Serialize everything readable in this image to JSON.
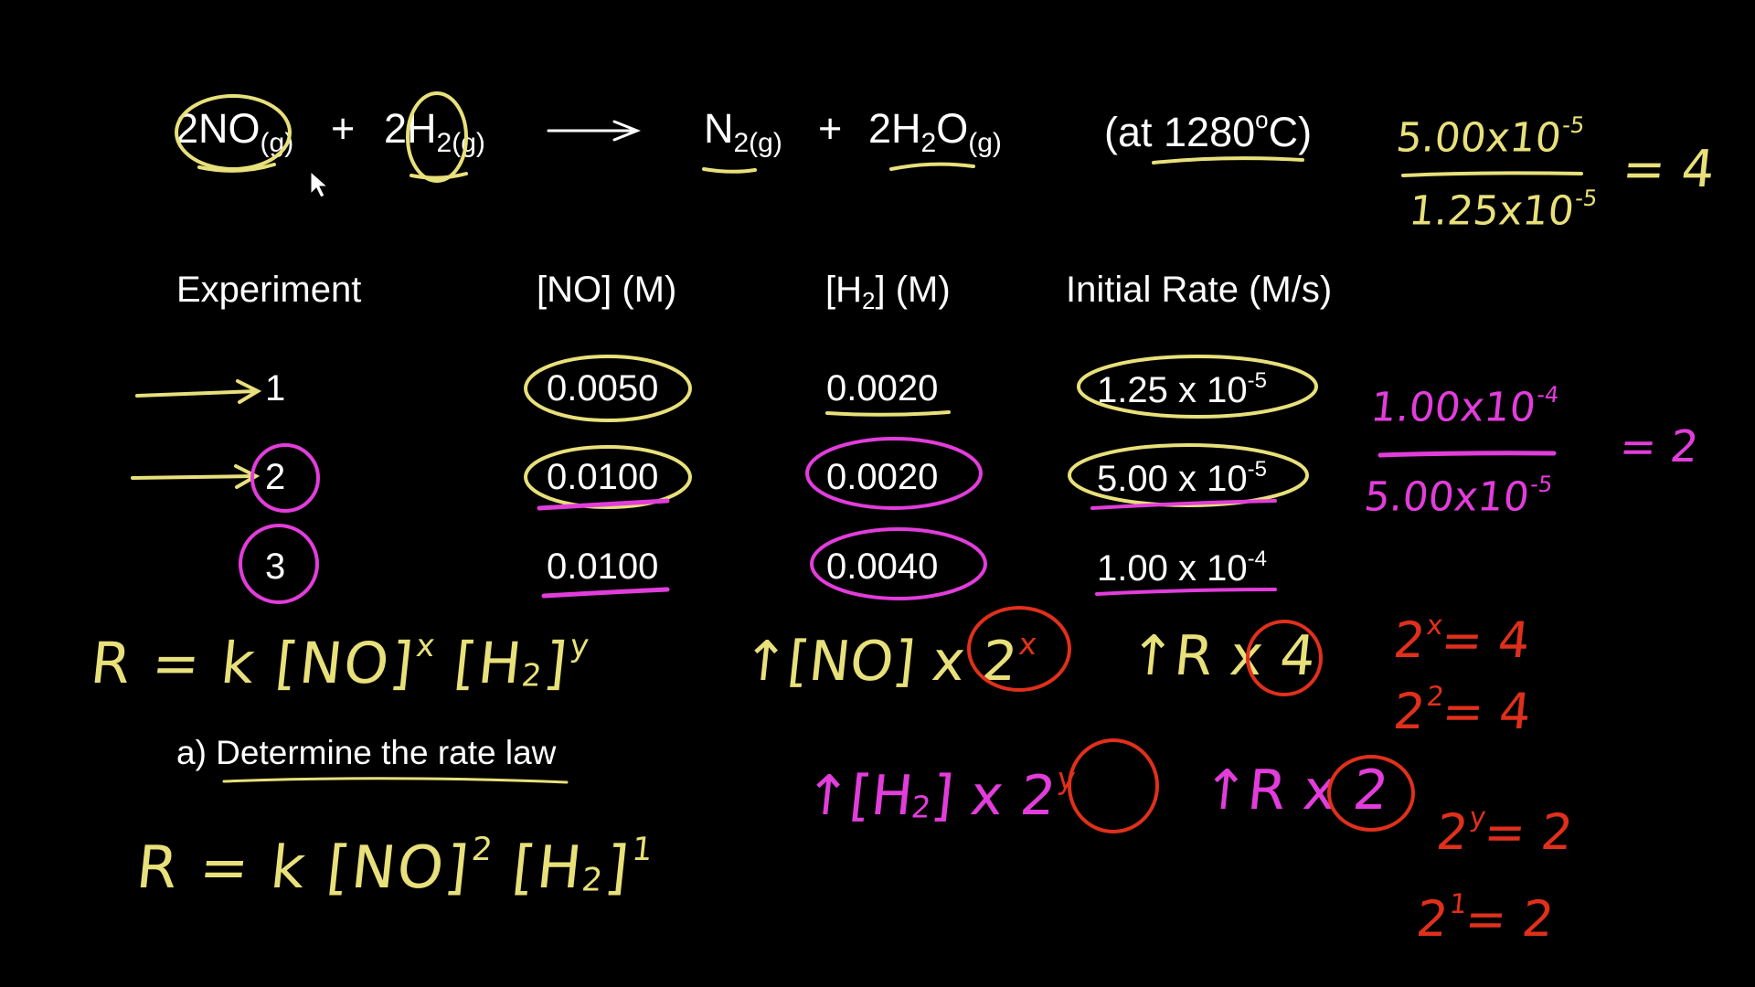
{
  "equation": {
    "reactant1": {
      "coef": "2NO",
      "state": "(g)"
    },
    "plus1": "+",
    "reactant2": {
      "coef": "2H",
      "sub": "2(g)"
    },
    "product1": {
      "main": "N",
      "sub": "2(g)"
    },
    "plus2": "+",
    "product2": {
      "coef": "2H",
      "sub": "2",
      "tail": "O",
      "state": "(g)"
    },
    "condition": "(at 1280",
    "condition_deg": "o",
    "condition_end": "C)"
  },
  "table": {
    "headers": {
      "experiment": "Experiment",
      "no": "[NO]  (M)",
      "h2_open": "[H",
      "h2_sub": "2",
      "h2_close": "] (M)",
      "rate": "Initial Rate (M/s)"
    },
    "rows": [
      {
        "exp": "1",
        "no": "0.0050",
        "h2": "0.0020",
        "rate_base": "1.25 x 10",
        "rate_exp": "-5"
      },
      {
        "exp": "2",
        "no": "0.0100",
        "h2": "0.0020",
        "rate_base": "5.00 x 10",
        "rate_exp": "-5"
      },
      {
        "exp": "3",
        "no": "0.0100",
        "h2": "0.0040",
        "rate_base": "1.00 x 10",
        "rate_exp": "-4"
      }
    ]
  },
  "question": "a) Determine the rate law",
  "handwriting": {
    "ratio1_num": "5.00x10",
    "ratio1_num_exp": "-5",
    "ratio1_den": "1.25x10",
    "ratio1_den_exp": "-5",
    "ratio1_result": "= 4",
    "ratio2_num": "1.00x10",
    "ratio2_num_exp": "-4",
    "ratio2_den": "5.00x10",
    "ratio2_den_exp": "-5",
    "ratio2_result": "= 2",
    "general_law_pre": "R = k [NO]",
    "general_law_x": "x",
    "general_law_mid": "[H",
    "general_law_sub": "2",
    "general_law_close": "]",
    "general_law_y": "y",
    "no_increase": "↑[NO] x 2",
    "no_increase_exp": "x",
    "rate_increase_4": "↑R x 4",
    "h2_increase_pre": "↑[H",
    "h2_increase_sub": "2",
    "h2_increase_post": "] x 2",
    "h2_increase_exp": "y",
    "rate_increase_2": "↑R x 2",
    "eq1_base": "2",
    "eq1_exp": "x",
    "eq1_rest": "= 4",
    "eq2_base": "2",
    "eq2_exp": "2",
    "eq2_rest": "= 4",
    "eq3_base": "2",
    "eq3_exp": "y",
    "eq3_rest": "= 2",
    "eq4_base": "2",
    "eq4_exp": "1",
    "eq4_rest": "= 2",
    "final_law_pre": "R = k [NO]",
    "final_law_exp1": "2",
    "final_law_mid": "[H",
    "final_law_sub": "2",
    "final_law_close": "]",
    "final_law_exp2": "1"
  },
  "colors": {
    "yellow": "#e8e07a",
    "magenta": "#e23ddb",
    "red": "#e0301c",
    "white": "#ffffff"
  }
}
